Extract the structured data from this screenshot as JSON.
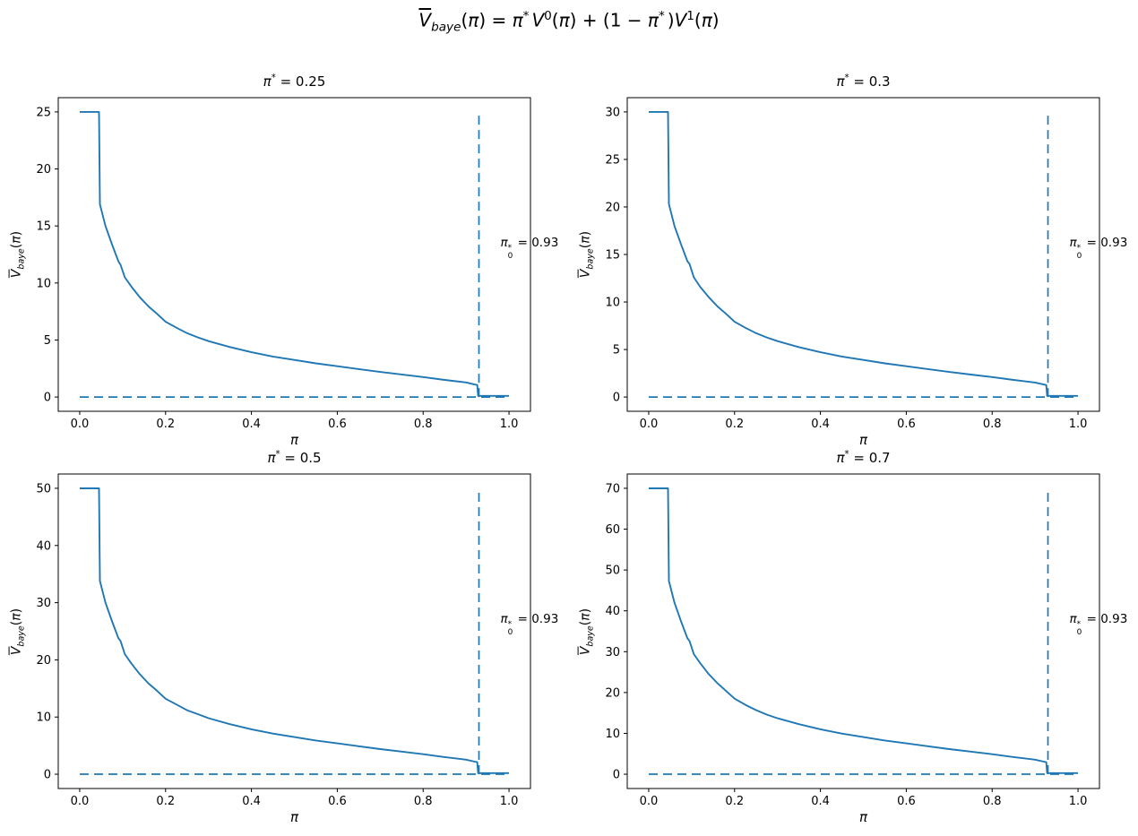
{
  "figure": {
    "colors": {
      "line": "#1f77b4",
      "text": "#000000",
      "spine": "#000000",
      "background": "#ffffff"
    },
    "suptitle": {
      "seg_eq": ") = ",
      "seg_plus": ") + (1 − ",
      "sup_zero": "0",
      "sup_one": "1"
    }
  },
  "labels": {
    "pi": "π",
    "star": "*",
    "zero": "0",
    "eq": " = ",
    "v": "V",
    "v_sub": "baye",
    "lp": "(",
    "rp": ")",
    "xlabel": "π"
  },
  "xticks": [
    "0.0",
    "0.2",
    "0.4",
    "0.6",
    "0.8",
    "1.0"
  ],
  "subplots": [
    {
      "pi_star_value": "0.25",
      "pi0_value": "0.93",
      "yticks": [
        "0",
        "5",
        "10",
        "15",
        "20",
        "25"
      ]
    },
    {
      "pi_star_value": "0.3",
      "pi0_value": "0.93",
      "yticks": [
        "0",
        "5",
        "10",
        "15",
        "20",
        "25",
        "30"
      ]
    },
    {
      "pi_star_value": "0.5",
      "pi0_value": "0.93",
      "yticks": [
        "0",
        "10",
        "20",
        "30",
        "40",
        "50"
      ]
    },
    {
      "pi_star_value": "0.7",
      "pi0_value": "0.93",
      "yticks": [
        "0",
        "10",
        "20",
        "30",
        "40",
        "50",
        "60",
        "70"
      ]
    }
  ],
  "chart_data": [
    {
      "type": "line",
      "title": "π* = 0.25",
      "xlabel": "π",
      "ylabel": "V̅_baye(π)",
      "xlim": [
        -0.05,
        1.05
      ],
      "ylim": [
        -1.25,
        26.25
      ],
      "xticks": [
        0.0,
        0.2,
        0.4,
        0.6,
        0.8,
        1.0
      ],
      "yticks": [
        0,
        5,
        10,
        15,
        20,
        25
      ],
      "grid": false,
      "legend": false,
      "annotation": {
        "text": "π₀* = 0.93",
        "x": 0.93,
        "y": 13.1
      },
      "series": [
        {
          "name": "V_baye",
          "style": "solid",
          "color": "#1f77b4",
          "x": [
            0.0,
            0.045,
            0.047,
            0.06,
            0.075,
            0.09,
            0.095,
            0.105,
            0.12,
            0.14,
            0.16,
            0.18,
            0.2,
            0.225,
            0.25,
            0.275,
            0.3,
            0.35,
            0.4,
            0.45,
            0.5,
            0.55,
            0.6,
            0.65,
            0.7,
            0.75,
            0.8,
            0.85,
            0.9,
            0.92,
            0.926,
            0.928,
            0.93,
            1.0
          ],
          "y": [
            25.0,
            25.0,
            16.9,
            15.0,
            13.4,
            11.9,
            11.6,
            10.5,
            9.7,
            8.75,
            7.95,
            7.3,
            6.6,
            6.08,
            5.6,
            5.23,
            4.9,
            4.38,
            3.93,
            3.55,
            3.25,
            2.95,
            2.7,
            2.45,
            2.2,
            1.98,
            1.75,
            1.5,
            1.28,
            1.1,
            1.05,
            0.1,
            0.1,
            0.1
          ]
        },
        {
          "name": "vline-pi0",
          "style": "dashed",
          "color": "#1f77b4",
          "x": [
            0.93,
            0.93
          ],
          "y": [
            0,
            25
          ]
        },
        {
          "name": "hline-zero",
          "style": "dashed",
          "color": "#1f77b4",
          "x": [
            0.0,
            1.0
          ],
          "y": [
            0,
            0
          ]
        }
      ]
    },
    {
      "type": "line",
      "title": "π* = 0.3",
      "xlabel": "π",
      "ylabel": "V̅_baye(π)",
      "xlim": [
        -0.05,
        1.05
      ],
      "ylim": [
        -1.5,
        31.5
      ],
      "xticks": [
        0.0,
        0.2,
        0.4,
        0.6,
        0.8,
        1.0
      ],
      "yticks": [
        0,
        5,
        10,
        15,
        20,
        25,
        30
      ],
      "grid": false,
      "legend": false,
      "annotation": {
        "text": "π₀* = 0.93",
        "x": 0.93,
        "y": 15.7
      },
      "series": [
        {
          "name": "V_baye",
          "style": "solid",
          "color": "#1f77b4",
          "x": [
            0.0,
            0.045,
            0.047,
            0.06,
            0.075,
            0.09,
            0.095,
            0.105,
            0.12,
            0.14,
            0.16,
            0.18,
            0.2,
            0.225,
            0.25,
            0.275,
            0.3,
            0.35,
            0.4,
            0.45,
            0.5,
            0.55,
            0.6,
            0.65,
            0.7,
            0.75,
            0.8,
            0.85,
            0.9,
            0.92,
            0.926,
            0.928,
            0.93,
            1.0
          ],
          "y": [
            30.0,
            30.0,
            20.3,
            18.0,
            16.1,
            14.3,
            14.0,
            12.6,
            11.6,
            10.5,
            9.54,
            8.76,
            7.92,
            7.29,
            6.72,
            6.27,
            5.88,
            5.25,
            4.71,
            4.26,
            3.9,
            3.54,
            3.24,
            2.94,
            2.64,
            2.37,
            2.1,
            1.8,
            1.53,
            1.32,
            1.26,
            0.12,
            0.12,
            0.12
          ]
        },
        {
          "name": "vline-pi0",
          "style": "dashed",
          "color": "#1f77b4",
          "x": [
            0.93,
            0.93
          ],
          "y": [
            0,
            30
          ]
        },
        {
          "name": "hline-zero",
          "style": "dashed",
          "color": "#1f77b4",
          "x": [
            0.0,
            1.0
          ],
          "y": [
            0,
            0
          ]
        }
      ]
    },
    {
      "type": "line",
      "title": "π* = 0.5",
      "xlabel": "π",
      "ylabel": "V̅_baye(π)",
      "xlim": [
        -0.05,
        1.05
      ],
      "ylim": [
        -2.5,
        52.5
      ],
      "xticks": [
        0.0,
        0.2,
        0.4,
        0.6,
        0.8,
        1.0
      ],
      "yticks": [
        0,
        10,
        20,
        30,
        40,
        50
      ],
      "grid": false,
      "legend": false,
      "annotation": {
        "text": "π₀* = 0.93",
        "x": 0.93,
        "y": 26.1
      },
      "series": [
        {
          "name": "V_baye",
          "style": "solid",
          "color": "#1f77b4",
          "x": [
            0.0,
            0.045,
            0.047,
            0.06,
            0.075,
            0.09,
            0.095,
            0.105,
            0.12,
            0.14,
            0.16,
            0.18,
            0.2,
            0.225,
            0.25,
            0.275,
            0.3,
            0.35,
            0.4,
            0.45,
            0.5,
            0.55,
            0.6,
            0.65,
            0.7,
            0.75,
            0.8,
            0.85,
            0.9,
            0.92,
            0.926,
            0.928,
            0.93,
            1.0
          ],
          "y": [
            50.0,
            50.0,
            33.8,
            30.0,
            26.8,
            23.8,
            23.3,
            21.0,
            19.4,
            17.5,
            15.9,
            14.6,
            13.2,
            12.2,
            11.2,
            10.5,
            9.8,
            8.75,
            7.85,
            7.1,
            6.5,
            5.9,
            5.4,
            4.9,
            4.4,
            3.95,
            3.5,
            3.0,
            2.55,
            2.2,
            2.1,
            0.2,
            0.2,
            0.2
          ]
        },
        {
          "name": "vline-pi0",
          "style": "dashed",
          "color": "#1f77b4",
          "x": [
            0.93,
            0.93
          ],
          "y": [
            0,
            50
          ]
        },
        {
          "name": "hline-zero",
          "style": "dashed",
          "color": "#1f77b4",
          "x": [
            0.0,
            1.0
          ],
          "y": [
            0,
            0
          ]
        }
      ]
    },
    {
      "type": "line",
      "title": "π* = 0.7",
      "xlabel": "π",
      "ylabel": "V̅_baye(π)",
      "xlim": [
        -0.05,
        1.05
      ],
      "ylim": [
        -3.5,
        73.5
      ],
      "xticks": [
        0.0,
        0.2,
        0.4,
        0.6,
        0.8,
        1.0
      ],
      "yticks": [
        0,
        10,
        20,
        30,
        40,
        50,
        60,
        70
      ],
      "grid": false,
      "legend": false,
      "annotation": {
        "text": "π₀* = 0.93",
        "x": 0.93,
        "y": 36.5
      },
      "series": [
        {
          "name": "V_baye",
          "style": "solid",
          "color": "#1f77b4",
          "x": [
            0.0,
            0.045,
            0.047,
            0.06,
            0.075,
            0.09,
            0.095,
            0.105,
            0.12,
            0.14,
            0.16,
            0.18,
            0.2,
            0.225,
            0.25,
            0.275,
            0.3,
            0.35,
            0.4,
            0.45,
            0.5,
            0.55,
            0.6,
            0.65,
            0.7,
            0.75,
            0.8,
            0.85,
            0.9,
            0.92,
            0.926,
            0.928,
            0.93,
            1.0
          ],
          "y": [
            70.0,
            70.0,
            47.3,
            42.0,
            37.5,
            33.3,
            32.6,
            29.4,
            27.2,
            24.5,
            22.3,
            20.4,
            18.5,
            17.0,
            15.7,
            14.6,
            13.7,
            12.25,
            11.0,
            9.94,
            9.1,
            8.26,
            7.56,
            6.86,
            6.16,
            5.53,
            4.9,
            4.2,
            3.57,
            3.08,
            2.94,
            0.28,
            0.28,
            0.28
          ]
        },
        {
          "name": "vline-pi0",
          "style": "dashed",
          "color": "#1f77b4",
          "x": [
            0.93,
            0.93
          ],
          "y": [
            0,
            70
          ]
        },
        {
          "name": "hline-zero",
          "style": "dashed",
          "color": "#1f77b4",
          "x": [
            0.0,
            1.0
          ],
          "y": [
            0,
            0
          ]
        }
      ]
    }
  ]
}
